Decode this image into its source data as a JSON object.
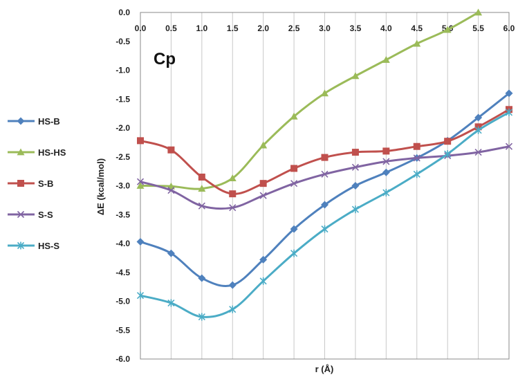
{
  "chart_data": {
    "type": "line",
    "panel_label": "Cp",
    "xlabel": "r (Å)",
    "ylabel": "ΔE (kcal/mol)",
    "xlim": [
      0.0,
      6.0
    ],
    "ylim": [
      -6.0,
      0.0
    ],
    "x_ticks": [
      "0.0",
      "0.5",
      "1.0",
      "1.5",
      "2.0",
      "2.5",
      "3.0",
      "3.5",
      "4.0",
      "4.5",
      "5.0",
      "5.5",
      "6.0"
    ],
    "y_ticks": [
      "0.0",
      "-0.5",
      "-1.0",
      "-1.5",
      "-2.0",
      "-2.5",
      "-3.0",
      "-3.5",
      "-4.0",
      "-4.5",
      "-5.0",
      "-5.5",
      "-6.0"
    ],
    "x_axis_position": "top",
    "grid": "vertical",
    "legend_position": "left",
    "x": [
      0.0,
      0.5,
      1.0,
      1.5,
      2.0,
      2.5,
      3.0,
      3.5,
      4.0,
      4.5,
      5.0,
      5.5,
      6.0
    ],
    "series": [
      {
        "name": "HS-B",
        "color": "#4f81bd",
        "marker": "diamond",
        "values": [
          -3.97,
          -4.17,
          -4.6,
          -4.72,
          -4.28,
          -3.75,
          -3.33,
          -3.0,
          -2.77,
          -2.52,
          -2.22,
          -1.82,
          -1.4
        ]
      },
      {
        "name": "HS-HS",
        "color": "#9bbb59",
        "marker": "triangle",
        "values": [
          -3.0,
          -3.01,
          -3.05,
          -2.87,
          -2.3,
          -1.8,
          -1.4,
          -1.1,
          -0.82,
          -0.54,
          -0.3,
          0.0,
          null
        ]
      },
      {
        "name": "S-B",
        "color": "#c0504d",
        "marker": "square",
        "values": [
          -2.22,
          -2.38,
          -2.85,
          -3.14,
          -2.96,
          -2.7,
          -2.51,
          -2.42,
          -2.4,
          -2.32,
          -2.23,
          -1.98,
          -1.68
        ]
      },
      {
        "name": "S-S",
        "color": "#8064a2",
        "marker": "x",
        "values": [
          -2.93,
          -3.08,
          -3.35,
          -3.38,
          -3.17,
          -2.96,
          -2.8,
          -2.68,
          -2.58,
          -2.52,
          -2.48,
          -2.42,
          -2.32
        ]
      },
      {
        "name": "HS-S",
        "color": "#4bacc6",
        "marker": "asterisk",
        "values": [
          -4.9,
          -5.03,
          -5.27,
          -5.14,
          -4.65,
          -4.17,
          -3.75,
          -3.41,
          -3.12,
          -2.8,
          -2.45,
          -2.04,
          -1.73
        ]
      }
    ]
  }
}
